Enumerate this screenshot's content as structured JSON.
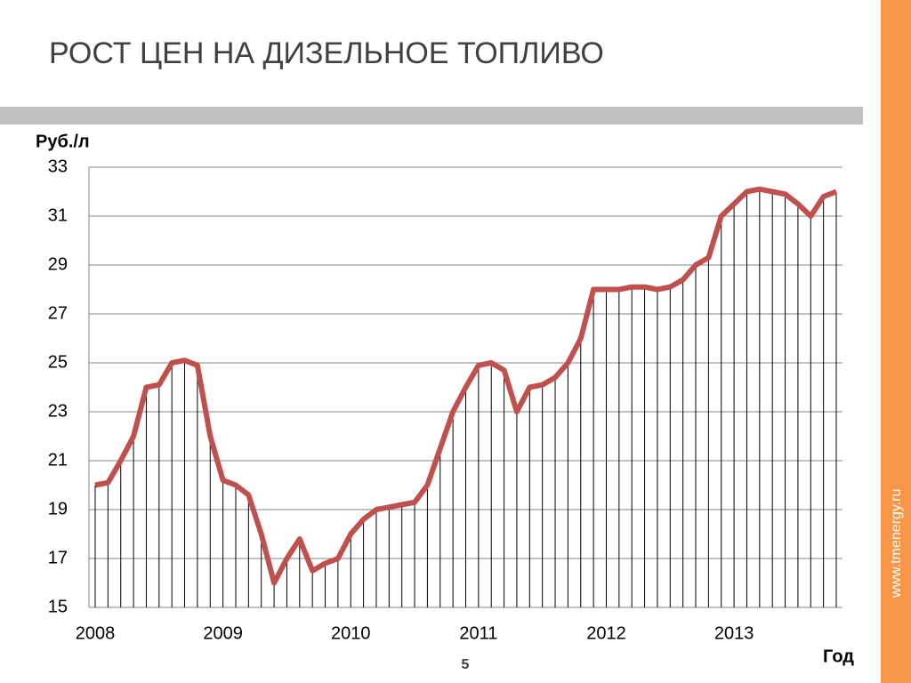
{
  "chart_data": {
    "type": "line",
    "title": "РОСТ ЦЕН НА ДИЗЕЛЬНОЕ ТОПЛИВО",
    "y_label": "Руб./л",
    "x_label": "Год",
    "categories": [
      "2008",
      null,
      null,
      null,
      null,
      null,
      null,
      null,
      null,
      null,
      "2009",
      null,
      null,
      null,
      null,
      null,
      null,
      null,
      null,
      null,
      "2010",
      null,
      null,
      null,
      null,
      null,
      null,
      null,
      null,
      null,
      "2011",
      null,
      null,
      null,
      null,
      null,
      null,
      null,
      null,
      null,
      "2012",
      null,
      null,
      null,
      null,
      null,
      null,
      null,
      null,
      null,
      "2013",
      null,
      null,
      null,
      null,
      null,
      null,
      null,
      null
    ],
    "values": [
      20.0,
      20.1,
      21.0,
      22.0,
      24.0,
      24.1,
      25.0,
      25.1,
      24.9,
      22.0,
      20.2,
      20.0,
      19.6,
      18.0,
      16.0,
      17.0,
      17.8,
      16.5,
      16.8,
      17.0,
      18.0,
      18.6,
      19.0,
      19.1,
      19.2,
      19.3,
      20.0,
      21.5,
      23.0,
      24.0,
      24.9,
      25.0,
      24.7,
      23.0,
      24.0,
      24.1,
      24.4,
      25.0,
      26.0,
      28.0,
      28.0,
      28.0,
      28.1,
      28.1,
      28.0,
      28.1,
      28.4,
      29.0,
      29.3,
      31.0,
      31.5,
      32.0,
      32.1,
      32.0,
      31.9,
      31.5,
      31.0,
      31.8,
      32.0
    ],
    "color": "#c0504d",
    "drop_line_color": "#000000",
    "ylim": [
      15,
      33
    ],
    "yticks": [
      15,
      17,
      19,
      21,
      23,
      25,
      27,
      29,
      31,
      33
    ],
    "grid": true
  },
  "slide": {
    "page_number": "5",
    "website": "www.tmenergy.ru"
  }
}
